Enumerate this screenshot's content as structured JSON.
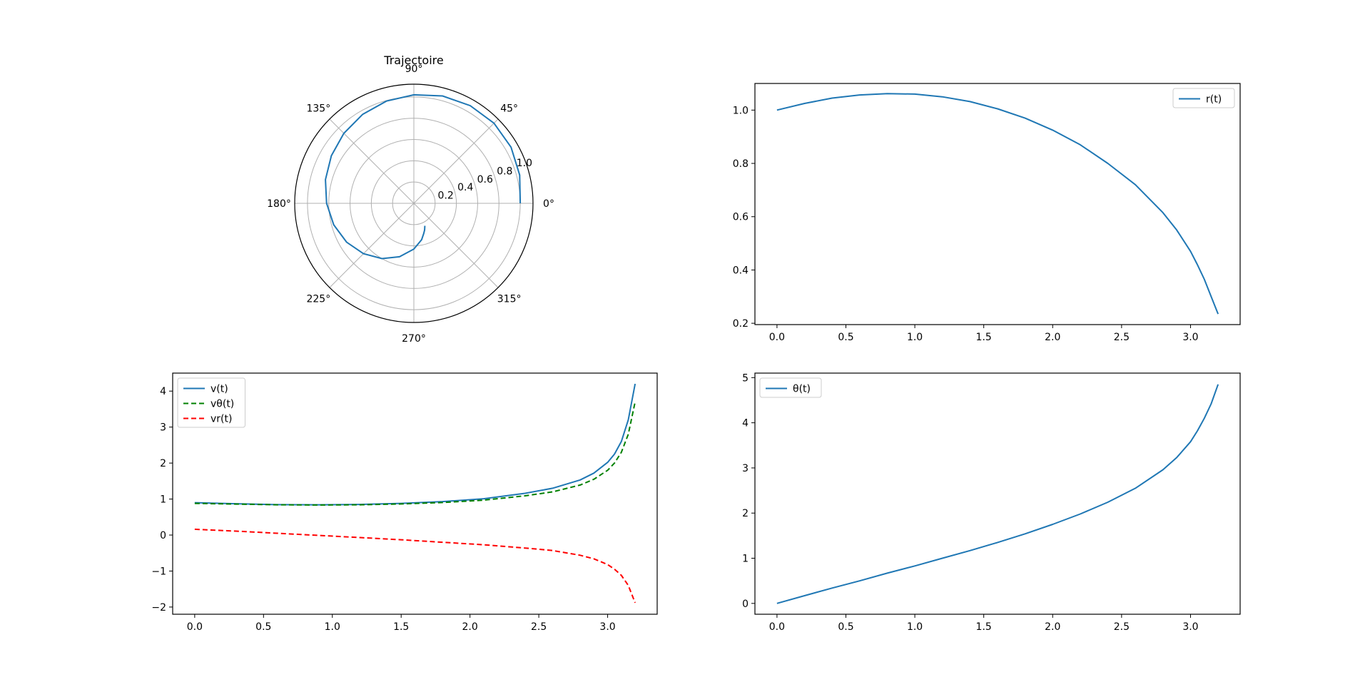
{
  "chart_data": [
    {
      "type": "polar-line",
      "title": "Trajectoire",
      "angle_ticks": [
        "0°",
        "45°",
        "90°",
        "135°",
        "180°",
        "225°",
        "270°",
        "315°"
      ],
      "r_ticks": [
        "0.2",
        "0.4",
        "0.6",
        "0.8",
        "1.0"
      ],
      "r_tick_values": [
        0.2,
        0.4,
        0.6,
        0.8,
        1.0
      ],
      "rmax": 1.12,
      "grid": true,
      "series": [
        {
          "color": "#1f77b4",
          "style": "solid",
          "points_theta_deg_r": [
            [
              0,
              1.0
            ],
            [
              15,
              1.03
            ],
            [
              30,
              1.055
            ],
            [
              45,
              1.065
            ],
            [
              60,
              1.06
            ],
            [
              75,
              1.045
            ],
            [
              90,
              1.02
            ],
            [
              105,
              0.995
            ],
            [
              120,
              0.965
            ],
            [
              135,
              0.93
            ],
            [
              150,
              0.895
            ],
            [
              165,
              0.86
            ],
            [
              180,
              0.82
            ],
            [
              195,
              0.78
            ],
            [
              210,
              0.73
            ],
            [
              225,
              0.67
            ],
            [
              240,
              0.6
            ],
            [
              255,
              0.52
            ],
            [
              270,
              0.43
            ],
            [
              282,
              0.35
            ],
            [
              288,
              0.3
            ],
            [
              292,
              0.27
            ],
            [
              296,
              0.235
            ]
          ]
        }
      ]
    },
    {
      "type": "line",
      "xlim": [
        -0.16,
        3.36
      ],
      "ylim": [
        0.195,
        1.1
      ],
      "xticks": [
        0.0,
        0.5,
        1.0,
        1.5,
        2.0,
        2.5,
        3.0
      ],
      "xtick_labels": [
        "0.0",
        "0.5",
        "1.0",
        "1.5",
        "2.0",
        "2.5",
        "3.0"
      ],
      "yticks": [
        0.2,
        0.4,
        0.6,
        0.8,
        1.0
      ],
      "ytick_labels": [
        "0.2",
        "0.4",
        "0.6",
        "0.8",
        "1.0"
      ],
      "legend_position": "upper right",
      "series": [
        {
          "name": "r(t)",
          "color": "#1f77b4",
          "style": "solid",
          "x": [
            0,
            0.2,
            0.4,
            0.6,
            0.8,
            1.0,
            1.2,
            1.4,
            1.6,
            1.8,
            2.0,
            2.2,
            2.4,
            2.6,
            2.8,
            2.9,
            3.0,
            3.05,
            3.1,
            3.15,
            3.2
          ],
          "y": [
            1.0,
            1.025,
            1.045,
            1.057,
            1.062,
            1.06,
            1.05,
            1.032,
            1.005,
            0.97,
            0.925,
            0.87,
            0.8,
            0.72,
            0.615,
            0.55,
            0.47,
            0.42,
            0.365,
            0.3,
            0.235
          ]
        }
      ]
    },
    {
      "type": "line",
      "xlim": [
        -0.16,
        3.36
      ],
      "ylim": [
        -2.2,
        4.5
      ],
      "xticks": [
        0.0,
        0.5,
        1.0,
        1.5,
        2.0,
        2.5,
        3.0
      ],
      "xtick_labels": [
        "0.0",
        "0.5",
        "1.0",
        "1.5",
        "2.0",
        "2.5",
        "3.0"
      ],
      "yticks": [
        -2,
        -1,
        0,
        1,
        2,
        3,
        4
      ],
      "ytick_labels": [
        "−2",
        "−1",
        "0",
        "1",
        "2",
        "3",
        "4"
      ],
      "legend_position": "upper left",
      "series": [
        {
          "name": "v(t)",
          "color": "#1f77b4",
          "style": "solid",
          "x": [
            0,
            0.3,
            0.6,
            0.9,
            1.2,
            1.5,
            1.8,
            2.1,
            2.4,
            2.6,
            2.8,
            2.9,
            3.0,
            3.05,
            3.1,
            3.15,
            3.2
          ],
          "y": [
            0.9,
            0.87,
            0.845,
            0.84,
            0.85,
            0.88,
            0.93,
            1.01,
            1.16,
            1.3,
            1.53,
            1.72,
            2.02,
            2.25,
            2.6,
            3.2,
            4.2
          ]
        },
        {
          "name": "vθ(t)",
          "color": "#008000",
          "style": "dashed",
          "x": [
            0,
            0.3,
            0.6,
            0.9,
            1.2,
            1.5,
            1.8,
            2.1,
            2.4,
            2.6,
            2.8,
            2.9,
            3.0,
            3.05,
            3.1,
            3.15,
            3.2
          ],
          "y": [
            0.88,
            0.86,
            0.84,
            0.835,
            0.84,
            0.865,
            0.905,
            0.97,
            1.09,
            1.2,
            1.39,
            1.55,
            1.8,
            2.0,
            2.3,
            2.8,
            3.7
          ]
        },
        {
          "name": "vr(t)",
          "color": "#ff0000",
          "style": "dashed",
          "x": [
            0,
            0.3,
            0.6,
            0.9,
            1.2,
            1.5,
            1.8,
            2.1,
            2.4,
            2.6,
            2.8,
            2.9,
            3.0,
            3.05,
            3.1,
            3.15,
            3.2
          ],
          "y": [
            0.16,
            0.11,
            0.05,
            -0.01,
            -0.07,
            -0.13,
            -0.2,
            -0.27,
            -0.36,
            -0.43,
            -0.56,
            -0.66,
            -0.82,
            -0.95,
            -1.12,
            -1.4,
            -1.88
          ]
        }
      ]
    },
    {
      "type": "line",
      "xlim": [
        -0.16,
        3.36
      ],
      "ylim": [
        -0.24,
        5.1
      ],
      "xticks": [
        0.0,
        0.5,
        1.0,
        1.5,
        2.0,
        2.5,
        3.0
      ],
      "xtick_labels": [
        "0.0",
        "0.5",
        "1.0",
        "1.5",
        "2.0",
        "2.5",
        "3.0"
      ],
      "yticks": [
        0,
        1,
        2,
        3,
        4,
        5
      ],
      "ytick_labels": [
        "0",
        "1",
        "2",
        "3",
        "4",
        "5"
      ],
      "legend_position": "upper left",
      "series": [
        {
          "name": "θ(t)",
          "color": "#1f77b4",
          "style": "solid",
          "x": [
            0,
            0.2,
            0.4,
            0.6,
            0.8,
            1.0,
            1.2,
            1.4,
            1.6,
            1.8,
            2.0,
            2.2,
            2.4,
            2.6,
            2.8,
            2.9,
            3.0,
            3.05,
            3.1,
            3.15,
            3.2
          ],
          "y": [
            0,
            0.17,
            0.34,
            0.5,
            0.67,
            0.83,
            1.0,
            1.17,
            1.35,
            1.54,
            1.75,
            1.98,
            2.24,
            2.55,
            2.96,
            3.23,
            3.58,
            3.82,
            4.1,
            4.42,
            4.85
          ]
        }
      ]
    }
  ]
}
